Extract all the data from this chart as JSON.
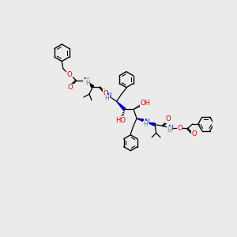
{
  "bg": "#ebebeb",
  "figsize": [
    3.0,
    3.0
  ],
  "dpi": 100,
  "colors": {
    "O": "#dd0000",
    "N": "#0000bb",
    "H": "#4a8888",
    "C": "#000000"
  }
}
